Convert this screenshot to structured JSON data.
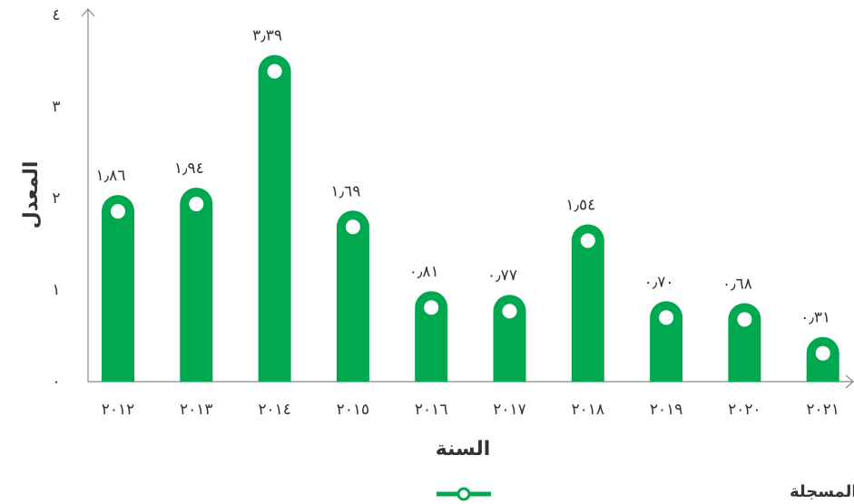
{
  "chart_data": {
    "type": "bar",
    "x_label": "السنة",
    "y_label": "المعدل",
    "categories": [
      "٢٠١٢",
      "٢٠١٣",
      "٢٠١٤",
      "٢٠١٥",
      "٢٠١٦",
      "٢٠١٧",
      "٢٠١٨",
      "٢٠١٩",
      "٢٠٢٠",
      "٢٠٢١"
    ],
    "series": [
      {
        "name": "إجمالي معدل الحوادث المسجلة",
        "color": "#00a94f",
        "values": [
          1.86,
          1.94,
          3.39,
          1.69,
          0.81,
          0.77,
          1.54,
          0.7,
          0.68,
          0.31
        ],
        "value_labels": [
          "١٫٨٦",
          "١٫٩٤",
          "٣٫٣٩",
          "١٫٦٩",
          "٠٫٨١",
          "٠٫٧٧",
          "١٫٥٤",
          "٠٫٧٠",
          "٠٫٦٨",
          "٠٫٣١"
        ]
      }
    ],
    "ylim": [
      0,
      4
    ],
    "yticks": [
      {
        "value": 0,
        "label": "٠"
      },
      {
        "value": 1,
        "label": "١"
      },
      {
        "value": 2,
        "label": "٢"
      },
      {
        "value": 3,
        "label": "٣"
      },
      {
        "value": 4,
        "label": "٤"
      }
    ],
    "grid": false
  }
}
